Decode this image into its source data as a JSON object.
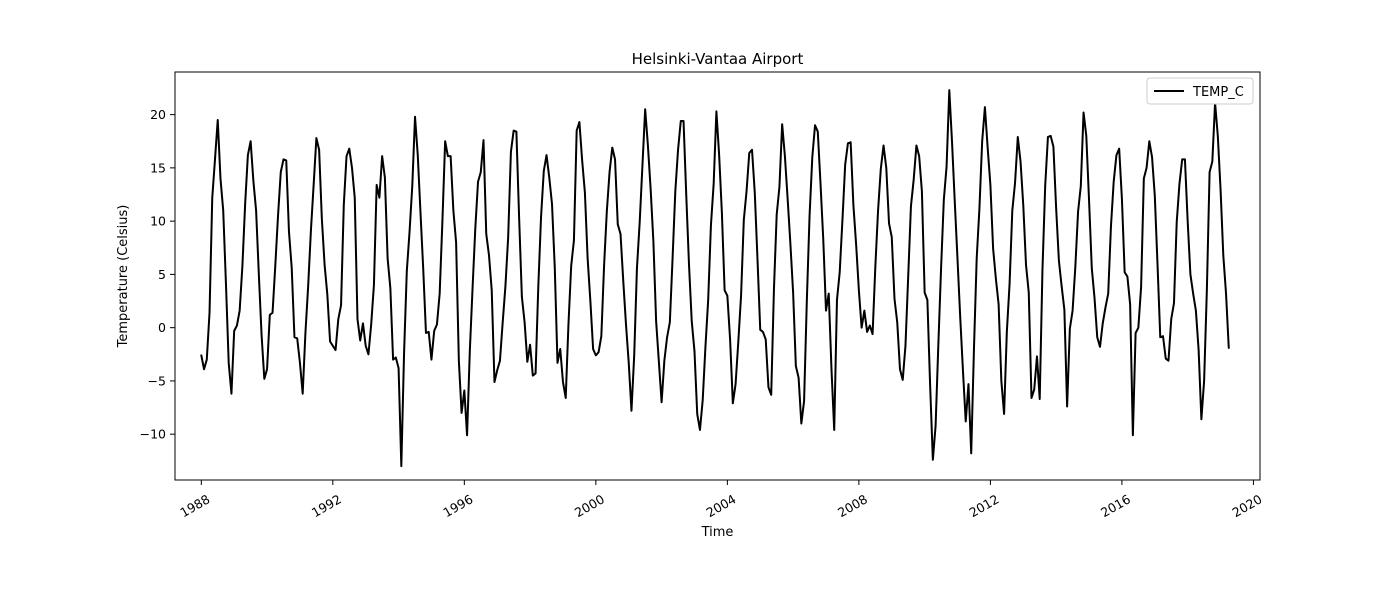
{
  "chart_data": {
    "type": "line",
    "title": "Helsinki-Vantaa Airport",
    "xlabel": "Time",
    "ylabel": "Temperature (Celsius)",
    "xlim": [
      1987.2,
      2020.2
    ],
    "ylim": [
      -14.3,
      24.0
    ],
    "x_ticks": [
      1988,
      1992,
      1996,
      2000,
      2004,
      2008,
      2012,
      2016,
      2020
    ],
    "x_tick_labels": [
      "1988",
      "1992",
      "1996",
      "2000",
      "2004",
      "2008",
      "2012",
      "2016",
      "2020"
    ],
    "y_ticks": [
      -10,
      -5,
      0,
      5,
      10,
      15,
      20
    ],
    "y_tick_labels": [
      "−10",
      "−5",
      "0",
      "5",
      "10",
      "15",
      "20"
    ],
    "grid": false,
    "legend_position": "top-right",
    "x_start_year": 1988,
    "x_start_month": 1,
    "series": [
      {
        "name": "TEMP_C",
        "color": "#000000",
        "values": [
          -2.6,
          -3.9,
          -3.0,
          1.4,
          12.2,
          15.8,
          19.5,
          14.0,
          11.0,
          4.1,
          -3.3,
          -6.2,
          -0.3,
          0.2,
          1.6,
          5.8,
          11.6,
          16.2,
          17.5,
          13.8,
          11.0,
          5.0,
          -0.7,
          -4.8,
          -3.9,
          1.2,
          1.4,
          5.8,
          10.5,
          14.6,
          15.8,
          15.7,
          9.0,
          5.6,
          -0.9,
          -1.0,
          -3.3,
          -6.2,
          -0.5,
          3.9,
          9.1,
          13.4,
          17.8,
          16.7,
          10.2,
          5.9,
          3.1,
          -1.3,
          -1.7,
          -2.1,
          0.8,
          2.1,
          11.5,
          16.1,
          16.8,
          15.0,
          12.2,
          0.8,
          -1.2,
          0.4,
          -1.7,
          -2.5,
          0.3,
          4.0,
          13.4,
          12.2,
          16.1,
          14.1,
          6.5,
          3.7,
          -3.0,
          -2.8,
          -3.8,
          -13.0,
          -2.4,
          5.3,
          9.0,
          13.3,
          19.8,
          16.2,
          10.8,
          5.5,
          -0.5,
          -0.4,
          -3.0,
          -0.3,
          0.3,
          3.2,
          10.0,
          17.5,
          16.1,
          16.1,
          11.0,
          8.0,
          -3.1,
          -8.0,
          -5.9,
          -10.1,
          -2.2,
          3.7,
          9.3,
          13.7,
          14.6,
          17.6,
          8.8,
          6.8,
          3.5,
          -5.1,
          -4.0,
          -3.1,
          0.5,
          3.9,
          8.5,
          16.5,
          18.5,
          18.4,
          10.3,
          2.9,
          0.5,
          -3.2,
          -1.6,
          -4.5,
          -4.3,
          3.9,
          10.4,
          14.7,
          16.2,
          14.1,
          11.6,
          5.7,
          -3.3,
          -2.0,
          -5.1,
          -6.6,
          0.3,
          5.8,
          8.2,
          18.5,
          19.3,
          15.7,
          12.7,
          6.5,
          2.5,
          -2.0,
          -2.6,
          -2.3,
          -0.8,
          5.8,
          10.9,
          14.6,
          16.9,
          15.8,
          9.7,
          8.8,
          4.4,
          0.3,
          -3.3,
          -7.8,
          -2.6,
          5.6,
          9.9,
          15.2,
          20.5,
          17.1,
          13.0,
          8.1,
          0.6,
          -3.2,
          -7.0,
          -3.1,
          -0.9,
          0.5,
          6.5,
          12.8,
          16.7,
          19.4,
          19.4,
          12.4,
          5.9,
          0.6,
          -2.2,
          -8.1,
          -9.6,
          -6.8,
          -1.8,
          2.6,
          9.6,
          13.5,
          20.3,
          16.2,
          10.8,
          3.5,
          3.0,
          -1.1,
          -7.1,
          -5.3,
          -1.3,
          3.0,
          10.1,
          12.8,
          16.4,
          16.7,
          12.7,
          6.4,
          -0.2,
          -0.4,
          -1.1,
          -5.6,
          -6.3,
          3.6,
          10.6,
          13.2,
          19.1,
          16.1,
          12.1,
          7.9,
          3.3,
          -3.6,
          -4.7,
          -9.0,
          -6.9,
          2.5,
          10.5,
          16.0,
          19.0,
          18.4,
          13.5,
          8.3,
          1.6,
          3.2,
          -3.9,
          -9.6,
          2.6,
          5.2,
          10.1,
          15.3,
          17.3,
          17.4,
          11.5,
          7.8,
          3.5,
          0.0,
          1.6,
          -0.4,
          0.2,
          -0.6,
          5.7,
          11.0,
          14.9,
          17.1,
          15.0,
          9.8,
          8.5,
          2.7,
          0.5,
          -3.9,
          -4.9,
          -1.7,
          4.8,
          11.4,
          13.9,
          17.1,
          16.1,
          12.8,
          3.3,
          2.6,
          -5.4,
          -12.4,
          -9.2,
          -1.6,
          5.6,
          12.0,
          15.1,
          22.3,
          17.4,
          11.8,
          6.4,
          0.9,
          -4.1,
          -8.8,
          -5.3,
          -11.8,
          -2.0,
          6.5,
          11.2,
          17.5,
          20.7,
          16.9,
          13.4,
          7.4,
          4.6,
          2.2,
          -5.0,
          -8.1,
          -0.4,
          4.1,
          11.0,
          13.6,
          17.9,
          15.6,
          11.5,
          5.9,
          3.3,
          -6.6,
          -5.8,
          -2.7,
          -6.7,
          5.4,
          13.3,
          17.9,
          18.0,
          17.0,
          11.2,
          6.3,
          3.9,
          1.7,
          -7.4,
          -0.1,
          1.6,
          5.7,
          10.9,
          13.3,
          20.2,
          18.0,
          12.0,
          5.6,
          2.8,
          -0.9,
          -1.8,
          0.4,
          1.9,
          3.2,
          9.5,
          13.7,
          16.2,
          16.8,
          12.1,
          5.2,
          4.8,
          2.2,
          -10.1,
          -0.5,
          0.0,
          3.8,
          14.0,
          15.0,
          17.5,
          16.0,
          12.4,
          5.9,
          -0.9,
          -0.8,
          -2.9,
          -3.1,
          0.8,
          2.3,
          9.9,
          13.5,
          15.8,
          15.8,
          10.0,
          5.0,
          3.2,
          1.6,
          -2.1,
          -8.6,
          -5.0,
          3.5,
          14.6,
          15.6,
          21.1,
          18.0,
          13.0,
          6.8,
          3.2,
          -1.9
        ]
      }
    ]
  }
}
